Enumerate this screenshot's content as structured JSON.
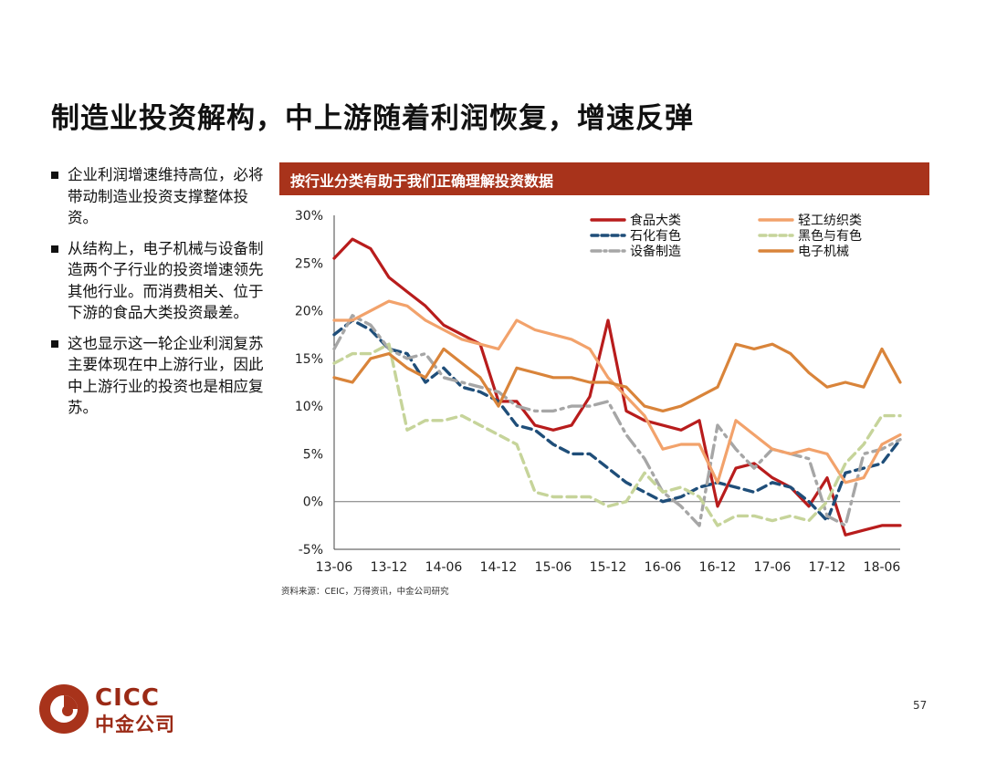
{
  "slide": {
    "title": "制造业投资解构，中上游随着利润恢复，增速反弹",
    "bullets": [
      "企业利润增速维持高位，必将带动制造业投资支撑整体投资。",
      "从结构上，电子机械与设备制造两个子行业的投资增速领先其他行业。而消费相关、位于下游的食品大类投资最差。",
      "这也显示这一轮企业利润复苏主要体现在中上游行业，因此中上游行业的投资也是相应复苏。"
    ],
    "banner": "按行业分类有助于我们正确理解投资数据",
    "source": "资料来源：CEIC，万得资讯，中金公司研究",
    "page_number": "57",
    "logo_text_en": "CICC",
    "logo_text_cn": "中金公司",
    "brand_color": "#a8331b"
  },
  "chart_data": {
    "type": "line",
    "title": "",
    "xlabel": "",
    "ylabel": "",
    "x": [
      "13-06",
      "13-08",
      "13-10",
      "13-12",
      "14-02",
      "14-04",
      "14-06",
      "14-08",
      "14-10",
      "14-12",
      "15-02",
      "15-04",
      "15-06",
      "15-08",
      "15-10",
      "15-12",
      "16-02",
      "16-04",
      "16-06",
      "16-08",
      "16-10",
      "16-12",
      "17-02",
      "17-04",
      "17-06",
      "17-08",
      "17-10",
      "17-12",
      "18-02",
      "18-04",
      "18-06",
      "18-07"
    ],
    "x_tick_labels": [
      "13-06",
      "13-12",
      "14-06",
      "14-12",
      "15-06",
      "15-12",
      "16-06",
      "16-12",
      "17-06",
      "17-12",
      "18-06"
    ],
    "y_tick_labels": [
      "30%",
      "25%",
      "20%",
      "15%",
      "10%",
      "5%",
      "0%",
      "-5%"
    ],
    "ylim": [
      -5,
      30
    ],
    "y_ticks": [
      30,
      25,
      20,
      15,
      10,
      5,
      0,
      -5
    ],
    "grid": false,
    "legend_position": "top",
    "series": [
      {
        "name": "食品大类",
        "color": "#b81c1c",
        "dash": "solid",
        "values": [
          25.5,
          27.5,
          26.5,
          23.5,
          22,
          20.5,
          18.5,
          17.5,
          16.5,
          10.5,
          10.5,
          8,
          7.5,
          8,
          11,
          19,
          9.5,
          8.5,
          8,
          7.5,
          8.5,
          -0.5,
          3.5,
          4,
          2.5,
          1.5,
          -0.5,
          2.5,
          -3.5,
          -3,
          -2.5,
          -2.5
        ]
      },
      {
        "name": "石化有色",
        "color": "#1f4e79",
        "dash": "dashed",
        "values": [
          17.5,
          19,
          18,
          16,
          15.5,
          12.5,
          14,
          12,
          11.5,
          10.5,
          8,
          7.5,
          6,
          5,
          5,
          3.5,
          2,
          1,
          0,
          0.5,
          1.5,
          2,
          1.5,
          1,
          2,
          1.5,
          0,
          -2,
          3,
          3.5,
          4,
          6.5
        ]
      },
      {
        "name": "设备制造",
        "color": "#a6a6a6",
        "dash": "dashdot",
        "values": [
          16,
          19.5,
          18.5,
          16,
          15,
          15.5,
          13,
          12.5,
          12,
          11.5,
          10,
          9.5,
          9.5,
          10,
          10,
          10.5,
          7,
          4.5,
          1,
          -0.5,
          -2.5,
          8,
          5.5,
          3.5,
          5.5,
          5,
          4.5,
          -1.5,
          -2.5,
          5,
          5.5,
          6.5
        ]
      },
      {
        "name": "轻工纺织类",
        "color": "#f2a26b",
        "dash": "solid",
        "values": [
          19,
          19,
          20,
          21,
          20.5,
          19,
          18,
          17,
          16.5,
          16,
          19,
          18,
          17.5,
          17,
          16,
          13,
          11,
          9,
          5.5,
          6,
          6,
          2,
          8.5,
          7,
          5.5,
          5,
          5.5,
          5,
          2,
          2.5,
          6,
          7
        ]
      },
      {
        "name": "黑色与有色",
        "color": "#c6d49a",
        "dash": "dashed",
        "values": [
          14.5,
          15.5,
          15.5,
          16.5,
          7.5,
          8.5,
          8.5,
          9,
          8,
          7,
          6,
          1,
          0.5,
          0.5,
          0.5,
          -0.5,
          0,
          3,
          1,
          1.5,
          0.5,
          -2.5,
          -1.5,
          -1.5,
          -2,
          -1.5,
          -2,
          0,
          4,
          6,
          9,
          9
        ]
      },
      {
        "name": "电子机械",
        "color": "#d9843a",
        "dash": "solid",
        "values": [
          13,
          12.5,
          15,
          15.5,
          14,
          13,
          16,
          14.5,
          13,
          10,
          14,
          13.5,
          13,
          13,
          12.5,
          12.5,
          12,
          10,
          9.5,
          10,
          11,
          12,
          16.5,
          16,
          16.5,
          15.5,
          13.5,
          12,
          12.5,
          12,
          16,
          12.5
        ]
      }
    ]
  }
}
